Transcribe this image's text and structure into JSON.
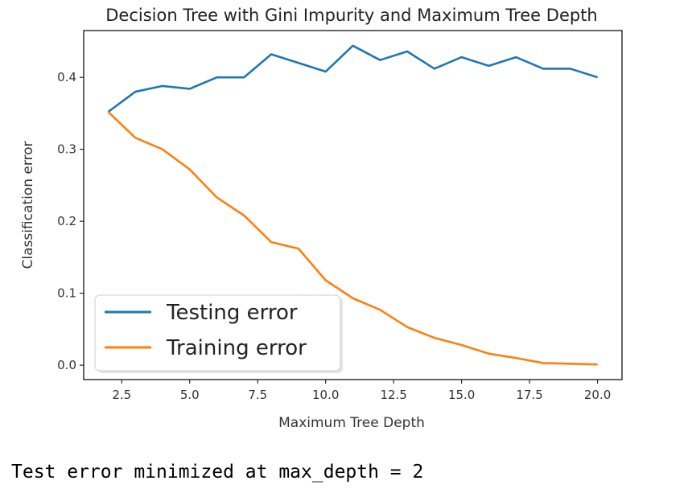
{
  "chart_data": {
    "type": "line",
    "title": "Decision Tree with Gini Impurity and Maximum Tree Depth",
    "xlabel": "Maximum Tree Depth",
    "ylabel": "Classification error",
    "xlim": [
      1.1,
      20.9
    ],
    "ylim": [
      -0.02,
      0.465
    ],
    "xticks": [
      2.5,
      5.0,
      7.5,
      10.0,
      12.5,
      15.0,
      17.5,
      20.0
    ],
    "xtick_labels": [
      "2.5",
      "5.0",
      "7.5",
      "10.0",
      "12.5",
      "15.0",
      "17.5",
      "20.0"
    ],
    "yticks": [
      0.0,
      0.1,
      0.2,
      0.3,
      0.4
    ],
    "ytick_labels": [
      "0.0",
      "0.1",
      "0.2",
      "0.3",
      "0.4"
    ],
    "grid": false,
    "legend_position": "lower-left",
    "x": [
      2,
      3,
      4,
      5,
      6,
      7,
      8,
      9,
      10,
      11,
      12,
      13,
      14,
      15,
      16,
      17,
      18,
      19,
      20
    ],
    "series": [
      {
        "name": "Testing error",
        "color": "#1f77b4",
        "values": [
          0.352,
          0.38,
          0.388,
          0.384,
          0.4,
          0.4,
          0.432,
          0.42,
          0.408,
          0.444,
          0.424,
          0.436,
          0.412,
          0.428,
          0.416,
          0.428,
          0.412,
          0.412,
          0.4
        ]
      },
      {
        "name": "Training error",
        "color": "#ff7f0e",
        "values": [
          0.352,
          0.316,
          0.3,
          0.272,
          0.233,
          0.208,
          0.171,
          0.162,
          0.118,
          0.093,
          0.077,
          0.053,
          0.038,
          0.028,
          0.016,
          0.01,
          0.003,
          0.002,
          0.001
        ]
      }
    ]
  },
  "output": {
    "text": "Test error minimized at max_depth = 2"
  }
}
